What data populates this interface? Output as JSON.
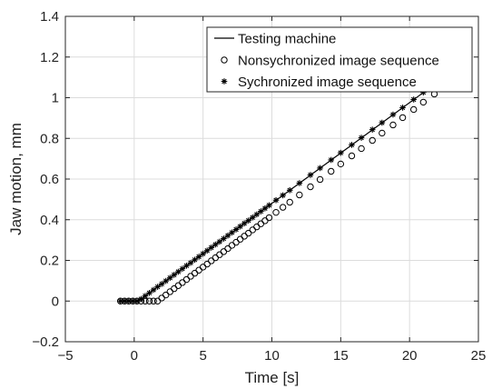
{
  "chart_data": {
    "type": "line",
    "title": "",
    "xlabel": "Time [s]",
    "ylabel": "Jaw motion, mm",
    "xlim": [
      -5,
      25
    ],
    "ylim": [
      -0.2,
      1.4
    ],
    "xticks": [
      -5,
      0,
      5,
      10,
      15,
      20,
      25
    ],
    "yticks": [
      -0.2,
      0,
      0.2,
      0.4,
      0.6,
      0.8,
      1,
      1.2,
      1.4
    ],
    "xtick_labels": [
      "−5",
      "0",
      "5",
      "10",
      "15",
      "20",
      "25"
    ],
    "ytick_labels": [
      "−0.2",
      "0",
      "0.2",
      "0.4",
      "0.6",
      "0.8",
      "1",
      "1.2",
      "1.4"
    ],
    "grid": true,
    "legend_position": "top-right",
    "series": [
      {
        "name": "Testing machine",
        "style": "line",
        "color": "#000000",
        "x": [
          -1,
          0.3,
          21.5
        ],
        "y": [
          0,
          0,
          1.05
        ]
      },
      {
        "name": "Nonsychronized image sequence",
        "style": "open-circle",
        "color": "#000000",
        "x": [
          -1.0,
          -0.7,
          -0.4,
          -0.1,
          0.2,
          0.5,
          0.8,
          1.1,
          1.4,
          1.7,
          2.0,
          2.3,
          2.6,
          2.9,
          3.2,
          3.5,
          3.8,
          4.1,
          4.4,
          4.7,
          5.0,
          5.3,
          5.6,
          5.9,
          6.2,
          6.5,
          6.8,
          7.1,
          7.4,
          7.7,
          8.0,
          8.3,
          8.6,
          8.9,
          9.2,
          9.5,
          9.8,
          10.3,
          10.8,
          11.3,
          12.0,
          12.8,
          13.5,
          14.3,
          15.0,
          15.8,
          16.5,
          17.3,
          18.0,
          18.8,
          19.5,
          20.3,
          21.0,
          21.8,
          22.5,
          23.3,
          24.0
        ],
        "y": [
          0.0,
          0.0,
          0.0,
          0.0,
          0.0,
          0.0,
          0.0,
          0.0,
          0.0,
          0.0,
          0.015,
          0.03,
          0.046,
          0.061,
          0.076,
          0.091,
          0.106,
          0.122,
          0.137,
          0.152,
          0.167,
          0.182,
          0.198,
          0.213,
          0.228,
          0.243,
          0.258,
          0.274,
          0.289,
          0.304,
          0.319,
          0.334,
          0.35,
          0.365,
          0.38,
          0.395,
          0.41,
          0.436,
          0.461,
          0.486,
          0.522,
          0.562,
          0.598,
          0.638,
          0.674,
          0.714,
          0.75,
          0.79,
          0.826,
          0.866,
          0.902,
          0.942,
          0.978,
          1.018,
          1.054,
          1.094,
          1.08
        ]
      },
      {
        "name": "Sychronized image sequence",
        "style": "asterisk",
        "color": "#000000",
        "x": [
          -1.0,
          -0.7,
          -0.4,
          -0.1,
          0.2,
          0.5,
          0.8,
          1.1,
          1.4,
          1.7,
          2.0,
          2.3,
          2.6,
          2.9,
          3.2,
          3.5,
          3.8,
          4.1,
          4.4,
          4.7,
          5.0,
          5.3,
          5.6,
          5.9,
          6.2,
          6.5,
          6.8,
          7.1,
          7.4,
          7.7,
          8.0,
          8.3,
          8.6,
          8.9,
          9.2,
          9.5,
          9.8,
          10.3,
          10.8,
          11.3,
          12.0,
          12.8,
          13.5,
          14.3,
          15.0,
          15.8,
          16.5,
          17.3,
          18.0,
          18.8,
          19.5,
          20.3,
          21.0
        ],
        "y": [
          0.0,
          0.0,
          0.0,
          0.0,
          0.0,
          0.01,
          0.025,
          0.04,
          0.055,
          0.07,
          0.084,
          0.099,
          0.114,
          0.129,
          0.144,
          0.159,
          0.174,
          0.188,
          0.203,
          0.218,
          0.233,
          0.248,
          0.263,
          0.278,
          0.292,
          0.307,
          0.322,
          0.337,
          0.352,
          0.367,
          0.382,
          0.396,
          0.411,
          0.426,
          0.441,
          0.456,
          0.471,
          0.496,
          0.52,
          0.545,
          0.58,
          0.62,
          0.654,
          0.694,
          0.729,
          0.768,
          0.803,
          0.843,
          0.877,
          0.917,
          0.951,
          0.991,
          1.026
        ]
      }
    ]
  }
}
